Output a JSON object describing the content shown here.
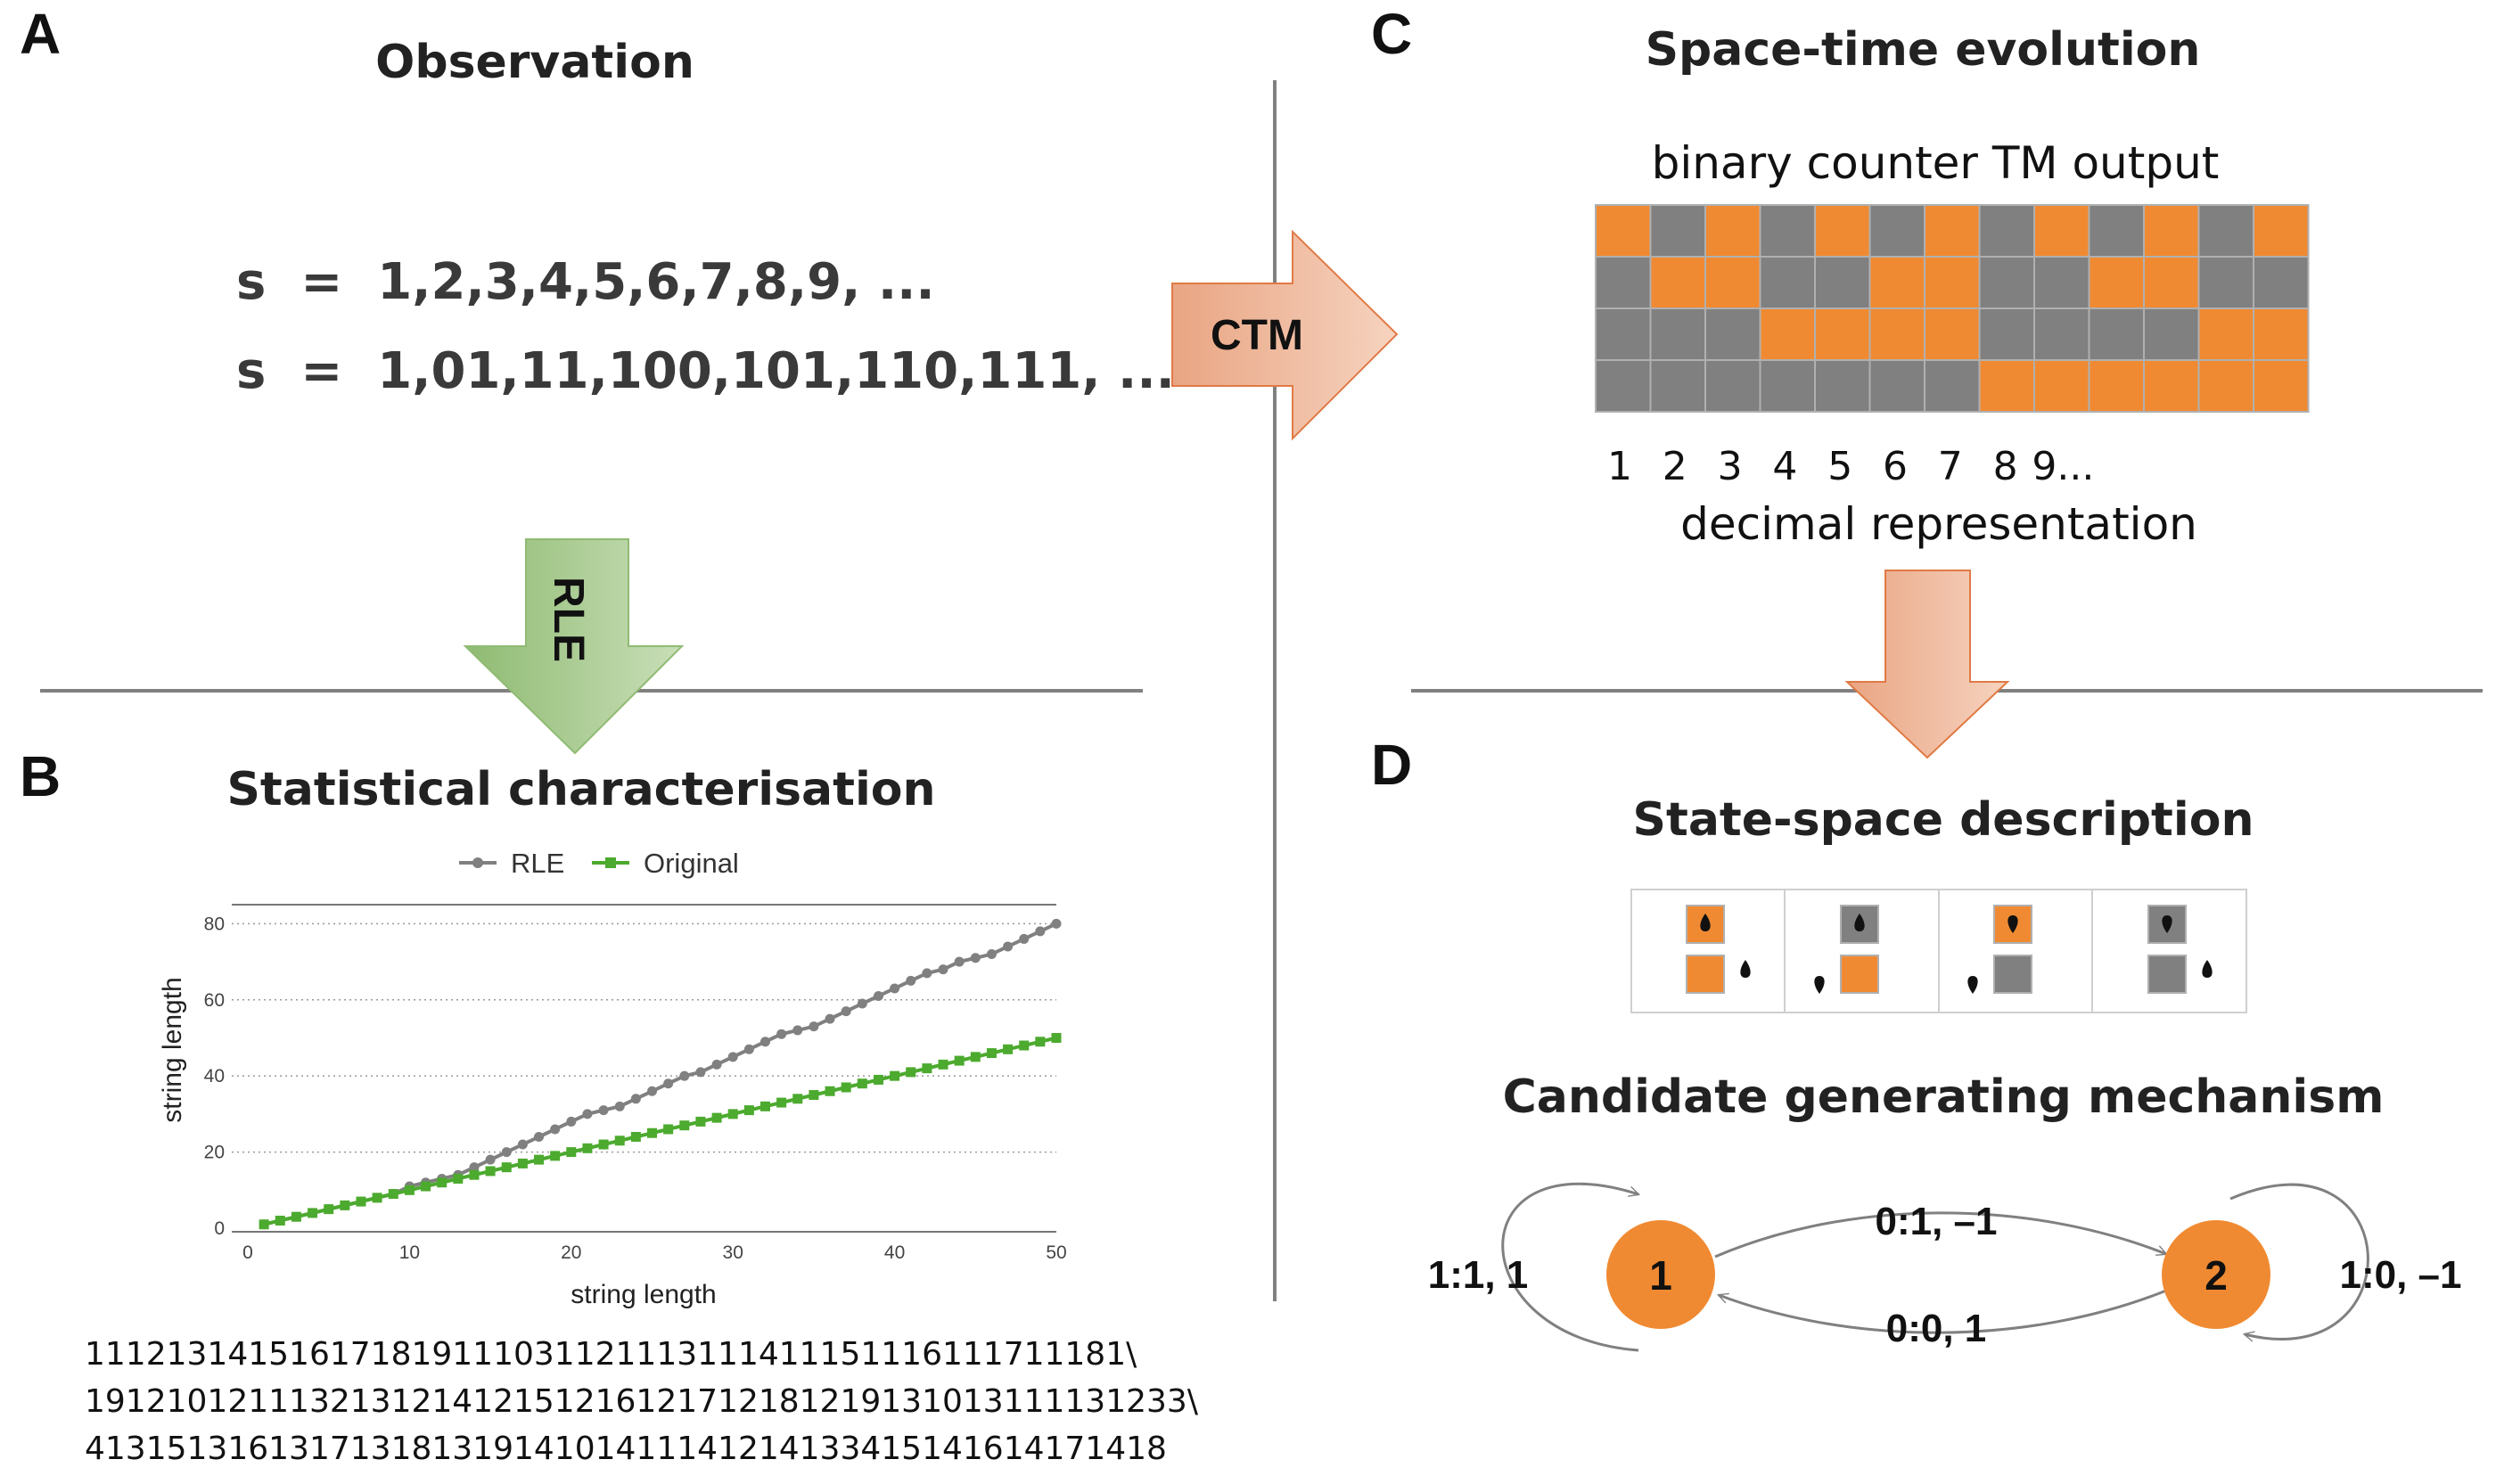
{
  "colors": {
    "orange": "#f08a32",
    "gray": "#808080",
    "green": "#4caa2e",
    "line_gray": "#808080",
    "arrow_salmon": "#eeb08f",
    "arrow_green": "#9fc485"
  },
  "panels": {
    "a": {
      "letter": "A",
      "title": "Observation",
      "s1": "s  =  1,2,3,4,5,6,7,8,9, ...",
      "s2": "s  =  1,01,11,100,101,110,111, ..."
    },
    "b": {
      "letter": "B",
      "title": "Statistical characterisation",
      "rle_lines": [
        "111213141516171819111031121113111411151116111711181\\",
        "191210121113213121412151216121712181219131013111131233\\",
        "413151316131713181319141014111412141334151416141714​18"
      ]
    },
    "c": {
      "letter": "C",
      "title": "Space-time evolution",
      "grid_title": "binary counter TM output",
      "decimal_numbers": [
        "1",
        "2",
        "3",
        "4",
        "5",
        "6",
        "7",
        "8",
        "9..."
      ],
      "decimal_label": "decimal representation"
    },
    "d": {
      "letter": "D",
      "title": "State-space description",
      "mechanism_title": "Candidate generating mechanism"
    }
  },
  "arrows": {
    "ctm": "CTM",
    "rle": "RLE"
  },
  "grid": {
    "rows": [
      [
        1,
        0,
        1,
        0,
        1,
        0,
        1,
        0,
        1,
        0,
        1,
        0,
        1
      ],
      [
        0,
        1,
        1,
        0,
        0,
        1,
        1,
        0,
        0,
        1,
        1,
        0,
        0
      ],
      [
        0,
        0,
        0,
        1,
        1,
        1,
        1,
        0,
        0,
        0,
        0,
        1,
        1
      ],
      [
        0,
        0,
        0,
        0,
        0,
        0,
        0,
        1,
        1,
        1,
        1,
        1,
        1
      ]
    ]
  },
  "graph": {
    "nodes": [
      "1",
      "2"
    ],
    "edges": {
      "loop1": "1:1, 1",
      "loop2": "1:0, –1",
      "top": "0:1, –1",
      "bottom": "0:0, 1"
    }
  },
  "chart_data": {
    "type": "line",
    "legend_placement": "top",
    "xlabel": "string length",
    "ylabel": "string length",
    "xlim": [
      0,
      50
    ],
    "ylim": [
      0,
      85
    ],
    "xticks": [
      "0",
      "10",
      "20",
      "30",
      "40",
      "50"
    ],
    "yticks": [
      "0",
      "20",
      "40",
      "60",
      "80"
    ],
    "grid": "horizontal dotted",
    "series": [
      {
        "name": "RLE",
        "color": "#808080",
        "marker": "circle",
        "x": [
          1,
          2,
          3,
          4,
          5,
          6,
          7,
          8,
          9,
          10,
          11,
          12,
          13,
          14,
          15,
          16,
          17,
          18,
          19,
          20,
          21,
          22,
          23,
          24,
          25,
          26,
          27,
          28,
          29,
          30,
          31,
          32,
          33,
          34,
          35,
          36,
          37,
          38,
          39,
          40,
          41,
          42,
          43,
          44,
          45,
          46,
          47,
          48,
          49,
          50
        ],
        "values": [
          1,
          2,
          3,
          4,
          5,
          6,
          7,
          8,
          9,
          11,
          12,
          13,
          14,
          16,
          18,
          20,
          22,
          24,
          26,
          28,
          30,
          31,
          32,
          34,
          36,
          38,
          40,
          41,
          43,
          45,
          47,
          49,
          51,
          52,
          53,
          55,
          57,
          59,
          61,
          63,
          65,
          67,
          68,
          70,
          71,
          72,
          74,
          76,
          78,
          80
        ]
      },
      {
        "name": "Original",
        "color": "#4caa2e",
        "marker": "square",
        "x": [
          1,
          2,
          3,
          4,
          5,
          6,
          7,
          8,
          9,
          10,
          11,
          12,
          13,
          14,
          15,
          16,
          17,
          18,
          19,
          20,
          21,
          22,
          23,
          24,
          25,
          26,
          27,
          28,
          29,
          30,
          31,
          32,
          33,
          34,
          35,
          36,
          37,
          38,
          39,
          40,
          41,
          42,
          43,
          44,
          45,
          46,
          47,
          48,
          49,
          50
        ],
        "values": [
          1,
          2,
          3,
          4,
          5,
          6,
          7,
          8,
          9,
          10,
          11,
          12,
          13,
          14,
          15,
          16,
          17,
          18,
          19,
          20,
          21,
          22,
          23,
          24,
          25,
          26,
          27,
          28,
          29,
          30,
          31,
          32,
          33,
          34,
          35,
          36,
          37,
          38,
          39,
          40,
          41,
          42,
          43,
          44,
          45,
          46,
          47,
          48,
          49,
          50
        ]
      }
    ]
  },
  "state_cells": [
    {
      "top": "orange",
      "bottom": "orange",
      "top_head": "up",
      "side_head": "right-up"
    },
    {
      "top": "gray",
      "bottom": "orange",
      "top_head": "up",
      "side_head": "left-down"
    },
    {
      "top": "orange",
      "bottom": "gray",
      "top_head": "down",
      "side_head": "left-down"
    },
    {
      "top": "gray",
      "bottom": "gray",
      "top_head": "down",
      "side_head": "right-up"
    }
  ]
}
